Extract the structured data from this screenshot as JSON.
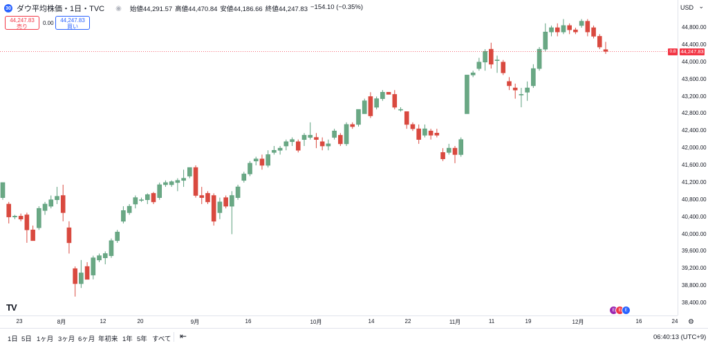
{
  "symbol": {
    "icon": "dow-icon",
    "icon_text": "30",
    "title": "ダウ平均株価・1日・TVC",
    "open_label": "始値",
    "open": "44,291.57",
    "high_label": "高値",
    "high": "44,470.84",
    "low_label": "安値",
    "low": "44,186.66",
    "close_label": "終値",
    "close": "44,247.83",
    "change": "−154.10 (−0.35%)"
  },
  "trade": {
    "sell_price": "44,247.83",
    "sell_label": "売り",
    "spread": "0.00",
    "buy_price": "44,247.83",
    "buy_label": "買い"
  },
  "price_axis": {
    "currency": "USD",
    "ticks": [
      "44,800.00",
      "44,400.00",
      "44,000.00",
      "43,600.00",
      "43,200.00",
      "42,800.00",
      "42,400.00",
      "42,000.00",
      "41,600.00",
      "41,200.00",
      "40,800.00",
      "40,400.00",
      "40,000.00",
      "39,600.00",
      "39,200.00",
      "38,800.00",
      "38,400.00"
    ],
    "current_label": "44,247.83",
    "current_tag": "0.8"
  },
  "time_axis": {
    "ticks": [
      "23",
      "8月",
      "12",
      "20",
      "9月",
      "16",
      "10月",
      "14",
      "22",
      "11月",
      "11",
      "19",
      "12月",
      "16",
      "24"
    ]
  },
  "bottom_bar": {
    "periods": [
      "1日",
      "5日",
      "1ヶ月",
      "3ヶ月",
      "6ヶ月",
      "年初来",
      "1年",
      "5年",
      "すべて"
    ],
    "clock": "06:40:13 (UTC+9)"
  },
  "colors": {
    "up": "#5a9e7c",
    "down": "#d9493f",
    "up_body": "#6aa884",
    "current_line": "#f23645"
  },
  "chart_data": {
    "type": "candlestick",
    "ylim": [
      38100,
      45250
    ],
    "current": 44247.83,
    "candles": [
      {
        "o": 40850,
        "h": 41200,
        "l": 40800,
        "c": 41200
      },
      {
        "o": 40700,
        "h": 40750,
        "l": 40250,
        "c": 40400
      },
      {
        "o": 40400,
        "h": 40450,
        "l": 40350,
        "c": 40420
      },
      {
        "o": 40420,
        "h": 40480,
        "l": 40300,
        "c": 40350
      },
      {
        "o": 40450,
        "h": 40500,
        "l": 39800,
        "c": 40100
      },
      {
        "o": 40100,
        "h": 40200,
        "l": 39850,
        "c": 39850
      },
      {
        "o": 40150,
        "h": 40650,
        "l": 40100,
        "c": 40600
      },
      {
        "o": 40550,
        "h": 40750,
        "l": 40450,
        "c": 40700
      },
      {
        "o": 40650,
        "h": 40900,
        "l": 40600,
        "c": 40800
      },
      {
        "o": 40800,
        "h": 41100,
        "l": 40700,
        "c": 40880
      },
      {
        "o": 40900,
        "h": 41150,
        "l": 40300,
        "c": 40500
      },
      {
        "o": 40150,
        "h": 40300,
        "l": 39550,
        "c": 39800
      },
      {
        "o": 39200,
        "h": 39250,
        "l": 38550,
        "c": 38850
      },
      {
        "o": 38850,
        "h": 39400,
        "l": 38750,
        "c": 39100
      },
      {
        "o": 39250,
        "h": 39350,
        "l": 38950,
        "c": 38950
      },
      {
        "o": 39050,
        "h": 39500,
        "l": 38950,
        "c": 39450
      },
      {
        "o": 39400,
        "h": 39550,
        "l": 39350,
        "c": 39500
      },
      {
        "o": 39450,
        "h": 39600,
        "l": 39300,
        "c": 39550
      },
      {
        "o": 39500,
        "h": 39900,
        "l": 39450,
        "c": 39850
      },
      {
        "o": 39850,
        "h": 40100,
        "l": 39800,
        "c": 40050
      },
      {
        "o": 40300,
        "h": 40650,
        "l": 40250,
        "c": 40550
      },
      {
        "o": 40500,
        "h": 40700,
        "l": 40450,
        "c": 40650
      },
      {
        "o": 40700,
        "h": 40900,
        "l": 40600,
        "c": 40850
      },
      {
        "o": 40800,
        "h": 40850,
        "l": 40750,
        "c": 40800
      },
      {
        "o": 40800,
        "h": 40950,
        "l": 40700,
        "c": 40920
      },
      {
        "o": 40950,
        "h": 40980,
        "l": 40700,
        "c": 40750
      },
      {
        "o": 40850,
        "h": 41200,
        "l": 40800,
        "c": 41150
      },
      {
        "o": 41150,
        "h": 41250,
        "l": 41100,
        "c": 41200
      },
      {
        "o": 41150,
        "h": 41250,
        "l": 41100,
        "c": 41220
      },
      {
        "o": 41200,
        "h": 41300,
        "l": 41000,
        "c": 41250
      },
      {
        "o": 41250,
        "h": 41500,
        "l": 41100,
        "c": 41300
      },
      {
        "o": 41350,
        "h": 41550,
        "l": 41300,
        "c": 41550
      },
      {
        "o": 41550,
        "h": 41600,
        "l": 40850,
        "c": 40900
      },
      {
        "o": 40900,
        "h": 41100,
        "l": 40700,
        "c": 40850
      },
      {
        "o": 40950,
        "h": 41000,
        "l": 40700,
        "c": 40750
      },
      {
        "o": 40900,
        "h": 40950,
        "l": 40200,
        "c": 40300
      },
      {
        "o": 40500,
        "h": 40850,
        "l": 40350,
        "c": 40750
      },
      {
        "o": 40850,
        "h": 40900,
        "l": 40600,
        "c": 40650
      },
      {
        "o": 40650,
        "h": 41000,
        "l": 40000,
        "c": 40900
      },
      {
        "o": 40850,
        "h": 41150,
        "l": 40800,
        "c": 41100
      },
      {
        "o": 41250,
        "h": 41450,
        "l": 41200,
        "c": 41400
      },
      {
        "o": 41400,
        "h": 41700,
        "l": 41350,
        "c": 41650
      },
      {
        "o": 41700,
        "h": 41800,
        "l": 41600,
        "c": 41750
      },
      {
        "o": 41750,
        "h": 41850,
        "l": 41500,
        "c": 41600
      },
      {
        "o": 41600,
        "h": 41950,
        "l": 41550,
        "c": 41850
      },
      {
        "o": 41900,
        "h": 42050,
        "l": 41850,
        "c": 41950
      },
      {
        "o": 41950,
        "h": 42050,
        "l": 41850,
        "c": 42000
      },
      {
        "o": 42050,
        "h": 42200,
        "l": 41950,
        "c": 42150
      },
      {
        "o": 42150,
        "h": 42250,
        "l": 42050,
        "c": 42200
      },
      {
        "o": 42150,
        "h": 42200,
        "l": 41900,
        "c": 41950
      },
      {
        "o": 42200,
        "h": 42350,
        "l": 42050,
        "c": 42300
      },
      {
        "o": 42250,
        "h": 42600,
        "l": 42200,
        "c": 42300
      },
      {
        "o": 42250,
        "h": 42350,
        "l": 42000,
        "c": 42200
      },
      {
        "o": 42150,
        "h": 42250,
        "l": 41950,
        "c": 42050
      },
      {
        "o": 42050,
        "h": 42200,
        "l": 41950,
        "c": 42100
      },
      {
        "o": 42250,
        "h": 42450,
        "l": 42200,
        "c": 42400
      },
      {
        "o": 42300,
        "h": 42350,
        "l": 42050,
        "c": 42100
      },
      {
        "o": 42100,
        "h": 42600,
        "l": 42050,
        "c": 42550
      },
      {
        "o": 42550,
        "h": 42600,
        "l": 42450,
        "c": 42500
      },
      {
        "o": 42550,
        "h": 42900,
        "l": 42500,
        "c": 42900
      },
      {
        "o": 42800,
        "h": 43150,
        "l": 42800,
        "c": 43100
      },
      {
        "o": 43200,
        "h": 43300,
        "l": 42700,
        "c": 42750
      },
      {
        "o": 42950,
        "h": 43200,
        "l": 42900,
        "c": 43150
      },
      {
        "o": 43150,
        "h": 43350,
        "l": 43100,
        "c": 43300
      },
      {
        "o": 43300,
        "h": 43300,
        "l": 43250,
        "c": 43250
      },
      {
        "o": 43250,
        "h": 43350,
        "l": 42900,
        "c": 42950
      },
      {
        "o": 42900,
        "h": 42950,
        "l": 42850,
        "c": 42900
      },
      {
        "o": 42850,
        "h": 42850,
        "l": 42450,
        "c": 42550
      },
      {
        "o": 42550,
        "h": 42600,
        "l": 42400,
        "c": 42450
      },
      {
        "o": 42450,
        "h": 42550,
        "l": 42100,
        "c": 42200
      },
      {
        "o": 42300,
        "h": 42550,
        "l": 42250,
        "c": 42450
      },
      {
        "o": 42400,
        "h": 42450,
        "l": 42200,
        "c": 42300
      },
      {
        "o": 42350,
        "h": 42450,
        "l": 42250,
        "c": 42300
      },
      {
        "o": 41900,
        "h": 42000,
        "l": 41700,
        "c": 41750
      },
      {
        "o": 41900,
        "h": 42100,
        "l": 41850,
        "c": 42000
      },
      {
        "o": 42000,
        "h": 42050,
        "l": 41650,
        "c": 41850
      },
      {
        "o": 41850,
        "h": 42250,
        "l": 41800,
        "c": 42200
      },
      {
        "o": 42800,
        "h": 43700,
        "l": 42800,
        "c": 43700
      },
      {
        "o": 43700,
        "h": 43800,
        "l": 43650,
        "c": 43750
      },
      {
        "o": 43850,
        "h": 44100,
        "l": 43800,
        "c": 44000
      },
      {
        "o": 44000,
        "h": 44300,
        "l": 43800,
        "c": 44250
      },
      {
        "o": 44300,
        "h": 44450,
        "l": 43850,
        "c": 43950
      },
      {
        "o": 44050,
        "h": 44150,
        "l": 43750,
        "c": 44050
      },
      {
        "o": 44000,
        "h": 44050,
        "l": 43700,
        "c": 43750
      },
      {
        "o": 43550,
        "h": 43650,
        "l": 43350,
        "c": 43450
      },
      {
        "o": 43400,
        "h": 43500,
        "l": 43150,
        "c": 43350
      },
      {
        "o": 43250,
        "h": 43400,
        "l": 42950,
        "c": 43250
      },
      {
        "o": 43300,
        "h": 43550,
        "l": 43100,
        "c": 43400
      },
      {
        "o": 43450,
        "h": 43950,
        "l": 43400,
        "c": 43850
      },
      {
        "o": 43850,
        "h": 44350,
        "l": 43800,
        "c": 44300
      },
      {
        "o": 44300,
        "h": 44900,
        "l": 44250,
        "c": 44700
      },
      {
        "o": 44700,
        "h": 44850,
        "l": 44600,
        "c": 44800
      },
      {
        "o": 44800,
        "h": 44900,
        "l": 44600,
        "c": 44700
      },
      {
        "o": 44700,
        "h": 45000,
        "l": 44650,
        "c": 44850
      },
      {
        "o": 44850,
        "h": 44900,
        "l": 44650,
        "c": 44750
      },
      {
        "o": 44750,
        "h": 44800,
        "l": 44650,
        "c": 44700
      },
      {
        "o": 44850,
        "h": 45000,
        "l": 44800,
        "c": 44950
      },
      {
        "o": 44950,
        "h": 45000,
        "l": 44600,
        "c": 44700
      },
      {
        "o": 44800,
        "h": 44850,
        "l": 44550,
        "c": 44600
      },
      {
        "o": 44600,
        "h": 44650,
        "l": 44300,
        "c": 44350
      },
      {
        "o": 44290,
        "h": 44470,
        "l": 44190,
        "c": 44248
      }
    ]
  }
}
